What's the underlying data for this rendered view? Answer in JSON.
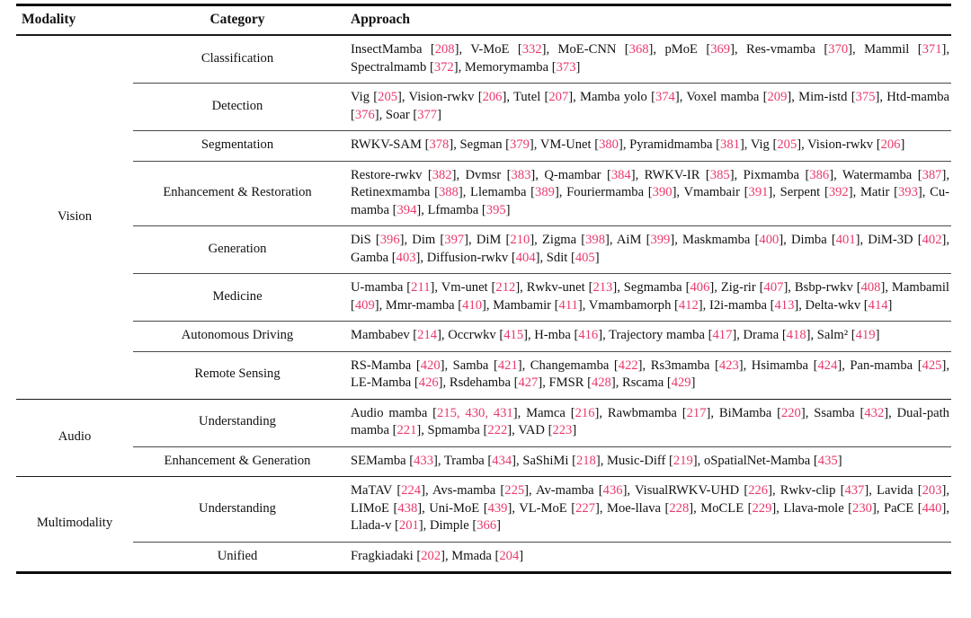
{
  "table": {
    "accent_color": "#e93a6c",
    "headers": {
      "modality": "Modality",
      "category": "Category",
      "approach": "Approach"
    },
    "groups": [
      {
        "modality": "Vision",
        "rows": [
          {
            "category": "Classification",
            "approach": "InsectMamba [208], V-MoE [332], MoE-CNN [368], pMoE [369], Res-vmamba [370], Mammil [371], Spectralmamb [372], Memorymamba [373]"
          },
          {
            "category": "Detection",
            "approach": "Vig [205], Vision-rwkv [206], Tutel [207], Mamba yolo [374], Voxel mamba [209], Mim-istd [375], Htd-mamba [376], Soar [377]"
          },
          {
            "category": "Segmentation",
            "approach": "RWKV-SAM [378], Segman [379], VM-Unet [380], Pyramidmamba [381], Vig [205], Vision-rwkv [206]"
          },
          {
            "category": "Enhancement & Restoration",
            "approach": "Restore-rwkv [382], Dvmsr [383], Q-mambar [384], RWKV-IR [385], Pixmamba [386], Watermamba [387], Retinexmamba [388], Llemamba [389], Fouriermamba [390], Vmambair [391], Serpent [392], Matir [393], Cu-mamba [394], Lfmamba [395]"
          },
          {
            "category": "Generation",
            "approach": "DiS [396], Dim [397], DiM [210], Zigma [398], AiM [399], Maskmamba [400], Dimba [401], DiM-3D [402], Gamba [403], Diffusion-rwkv [404], Sdit [405]"
          },
          {
            "category": "Medicine",
            "approach": "U-mamba [211], Vm-unet [212], Rwkv-unet [213], Segmamba [406], Zig-rir [407], Bsbp-rwkv [408], Mambamil [409], Mmr-mamba [410], Mambamir [411], Vmambamorph [412], I2i-mamba [413], Delta-wkv [414]"
          },
          {
            "category": "Autonomous Driving",
            "approach": "Mambabev [214], Occrwkv [415], H-mba [416], Trajectory mamba [417], Drama [418], Salm² [419]"
          },
          {
            "category": "Remote Sensing",
            "approach": "RS-Mamba [420], Samba [421], Changemamba [422], Rs3mamba [423], Hsimamba [424], Pan-mamba [425], LE-Mamba [426], Rsdehamba [427], FMSR [428], Rscama [429]"
          }
        ]
      },
      {
        "modality": "Audio",
        "rows": [
          {
            "category": "Understanding",
            "approach": "Audio mamba [215, 430, 431], Mamca [216], Rawbmamba [217], BiMamba [220], Ssamba [432], Dual-path mamba [221], Spmamba [222], VAD [223]"
          },
          {
            "category": "Enhancement & Generation",
            "approach": "SEMamba [433], Tramba [434], SaShiMi [218], Music-Diff [219], oSpatialNet-Mamba [435]"
          }
        ]
      },
      {
        "modality": "Multimodality",
        "rows": [
          {
            "category": "Understanding",
            "approach": "MaTAV [224], Avs-mamba [225], Av-mamba [436], VisualRWKV-UHD [226], Rwkv-clip [437], Lavida [203], LIMoE [438], Uni-MoE [439], VL-MoE [227], Moe-llava [228], MoCLE [229], Llava-mole [230], PaCE [440], Llada-v [201], Dimple [366]"
          },
          {
            "category": "Unified",
            "approach": "Fragkiadaki [202], Mmada [204]"
          }
        ]
      }
    ]
  }
}
